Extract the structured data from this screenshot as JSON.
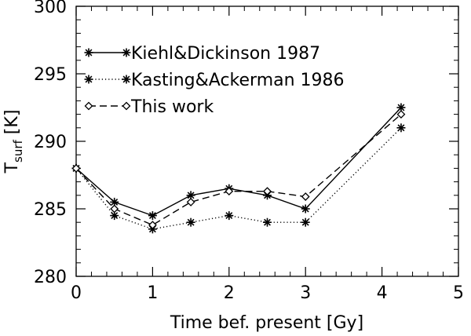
{
  "chart_data": {
    "type": "line",
    "title": "",
    "xlabel": "Time bef. present [Gy]",
    "ylabel_main": "T",
    "ylabel_sub": "surf",
    "ylabel_unit": "[K]",
    "xlim": [
      0,
      5
    ],
    "ylim": [
      280,
      300
    ],
    "xticks": [
      0,
      1,
      2,
      3,
      4,
      5
    ],
    "yticks": [
      280,
      285,
      290,
      295,
      300
    ],
    "grid": false,
    "legend_position": "top-left",
    "series": [
      {
        "name": "Kiehl&Dickinson 1987",
        "line_style": "solid",
        "marker": "asterisk",
        "x": [
          0,
          0.5,
          1.0,
          1.5,
          2.0,
          2.5,
          3.0,
          4.25
        ],
        "y": [
          288,
          285.5,
          284.5,
          286,
          286.5,
          286,
          285,
          292.5
        ]
      },
      {
        "name": "Kasting&Ackerman 1986",
        "line_style": "dotted",
        "marker": "asterisk",
        "x": [
          0,
          0.5,
          1.0,
          1.5,
          2.0,
          2.5,
          3.0,
          4.25
        ],
        "y": [
          288,
          284.5,
          283.5,
          284,
          284.5,
          284,
          284,
          291
        ]
      },
      {
        "name": "This work",
        "line_style": "dashed",
        "marker": "diamond",
        "x": [
          0,
          0.5,
          1.0,
          1.5,
          2.0,
          2.5,
          3.0,
          4.25
        ],
        "y": [
          288,
          285,
          283.8,
          285.5,
          286.3,
          286.3,
          285.9,
          292
        ]
      }
    ]
  }
}
